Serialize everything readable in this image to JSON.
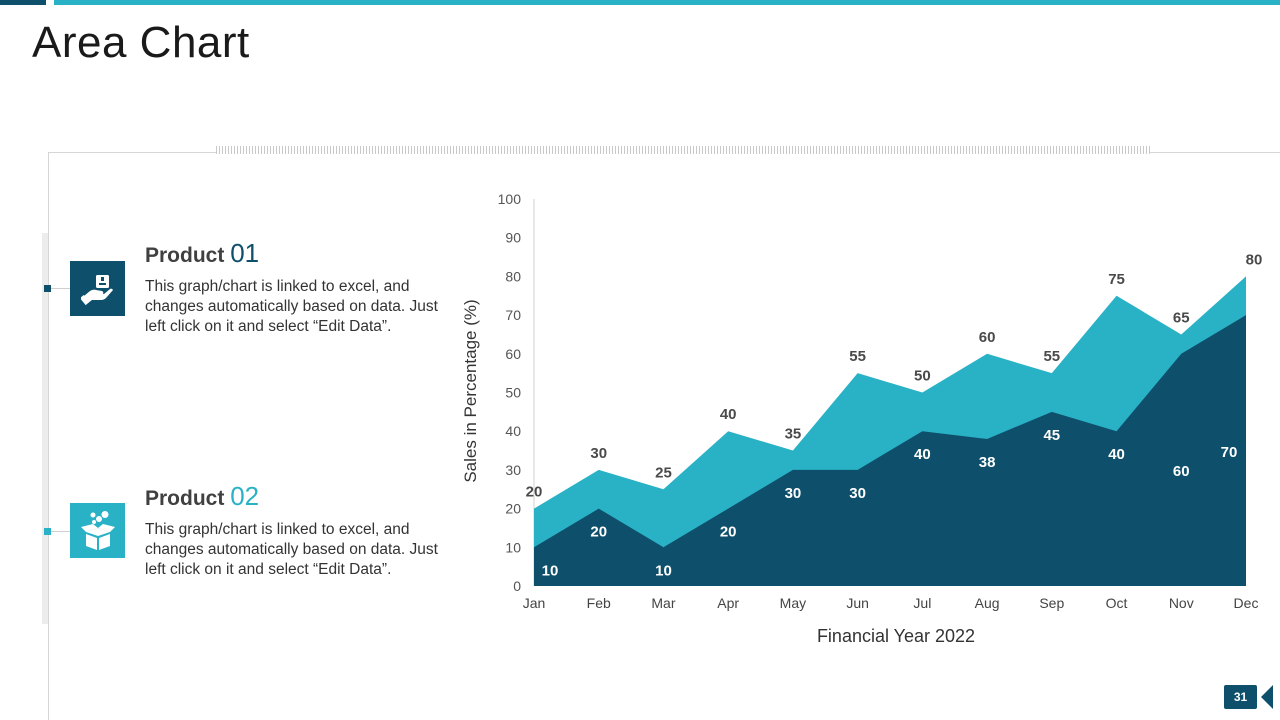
{
  "page": {
    "title": "Area Chart",
    "page_number": "31"
  },
  "colors": {
    "dark": "#0e4f6b",
    "light": "#29b1c6"
  },
  "products": [
    {
      "title": "Product",
      "number": "01",
      "icon": "hand-box-icon",
      "description": "This graph/chart is linked to excel, and changes automatically based on data. Just left click on it and select “Edit Data”."
    },
    {
      "title": "Product",
      "number": "02",
      "icon": "open-box-icon",
      "description": "This graph/chart is linked to excel, and changes automatically based on data. Just left click on it and select “Edit Data”."
    }
  ],
  "chart_data": {
    "type": "area",
    "categories": [
      "Jan",
      "Feb",
      "Mar",
      "Apr",
      "May",
      "Jun",
      "Jul",
      "Aug",
      "Sep",
      "Oct",
      "Nov",
      "Dec"
    ],
    "series": [
      {
        "color": "#29b1c6",
        "values": [
          20,
          30,
          25,
          40,
          35,
          55,
          50,
          60,
          55,
          75,
          65,
          80
        ]
      },
      {
        "color": "#0e4f6b",
        "values": [
          10,
          20,
          10,
          20,
          30,
          30,
          40,
          38,
          45,
          40,
          60,
          70
        ]
      }
    ],
    "ylabel": "Sales in Percentage (%)",
    "xlabel": "Financial Year 2022",
    "ylim": [
      0,
      100
    ],
    "yticks": [
      0,
      10,
      20,
      30,
      40,
      50,
      60,
      70,
      80,
      90,
      100
    ],
    "grid": false
  }
}
